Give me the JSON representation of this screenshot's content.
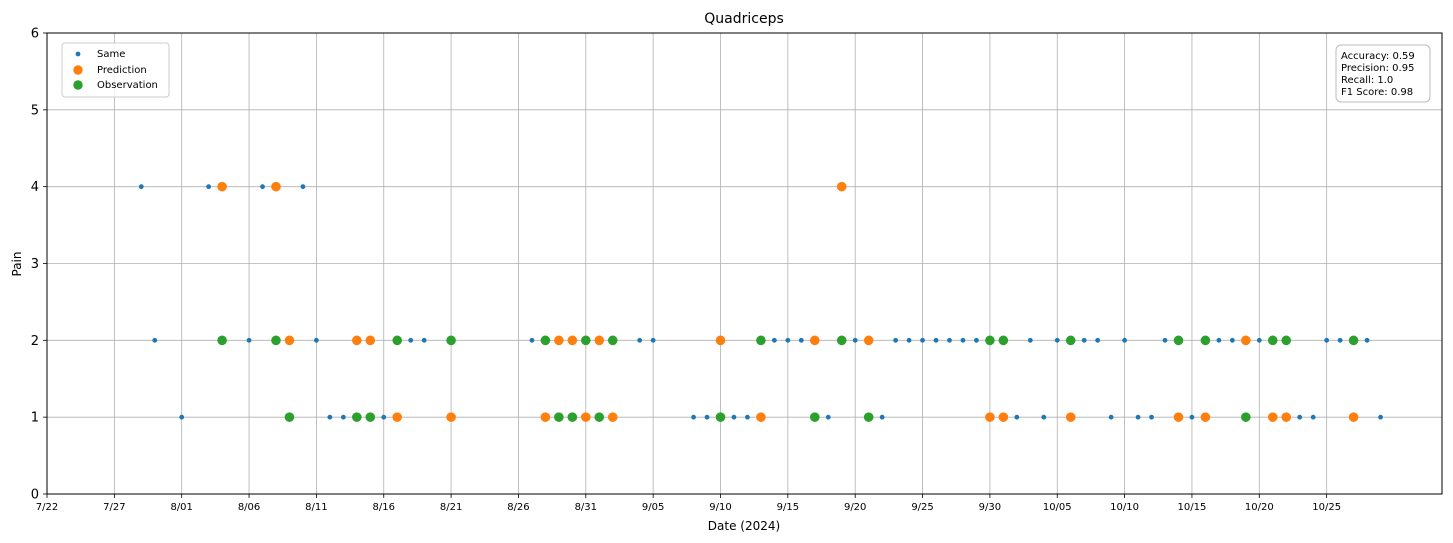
{
  "chart_data": {
    "type": "scatter",
    "title": "Quadriceps",
    "xlabel": "Date (2024)",
    "ylabel": "Pain",
    "ylim": [
      0,
      6
    ],
    "xlim": [
      "2024-07-22",
      "2024-11-01"
    ],
    "y_ticks": [
      "0",
      "1",
      "2",
      "3",
      "4",
      "5",
      "6"
    ],
    "x_ticks": [
      {
        "date": "2024-07-22",
        "label": "7/22"
      },
      {
        "date": "2024-07-27",
        "label": "7/27"
      },
      {
        "date": "2024-08-01",
        "label": "8/01"
      },
      {
        "date": "2024-08-06",
        "label": "8/06"
      },
      {
        "date": "2024-08-11",
        "label": "8/11"
      },
      {
        "date": "2024-08-16",
        "label": "8/16"
      },
      {
        "date": "2024-08-21",
        "label": "8/21"
      },
      {
        "date": "2024-08-26",
        "label": "8/26"
      },
      {
        "date": "2024-08-31",
        "label": "8/31"
      },
      {
        "date": "2024-09-05",
        "label": "9/05"
      },
      {
        "date": "2024-09-10",
        "label": "9/10"
      },
      {
        "date": "2024-09-15",
        "label": "9/15"
      },
      {
        "date": "2024-09-20",
        "label": "9/20"
      },
      {
        "date": "2024-09-25",
        "label": "9/25"
      },
      {
        "date": "2024-09-30",
        "label": "9/30"
      },
      {
        "date": "2024-10-05",
        "label": "10/05"
      },
      {
        "date": "2024-10-10",
        "label": "10/10"
      },
      {
        "date": "2024-10-15",
        "label": "10/15"
      },
      {
        "date": "2024-10-20",
        "label": "10/20"
      },
      {
        "date": "2024-10-25",
        "label": "10/25"
      }
    ],
    "grid": true,
    "legend_position": "top-left",
    "series": [
      {
        "name": "Same",
        "color": "#1f77b4",
        "marker": "small",
        "points": [
          [
            "2024-07-29",
            4
          ],
          [
            "2024-07-30",
            2
          ],
          [
            "2024-08-01",
            1
          ],
          [
            "2024-08-03",
            4
          ],
          [
            "2024-08-06",
            2
          ],
          [
            "2024-08-07",
            4
          ],
          [
            "2024-08-10",
            4
          ],
          [
            "2024-08-11",
            2
          ],
          [
            "2024-08-12",
            1
          ],
          [
            "2024-08-13",
            1
          ],
          [
            "2024-08-16",
            1
          ],
          [
            "2024-08-18",
            2
          ],
          [
            "2024-08-19",
            2
          ],
          [
            "2024-08-27",
            2
          ],
          [
            "2024-09-01",
            2
          ],
          [
            "2024-09-02",
            2
          ],
          [
            "2024-09-04",
            2
          ],
          [
            "2024-09-05",
            2
          ],
          [
            "2024-09-08",
            1
          ],
          [
            "2024-09-09",
            1
          ],
          [
            "2024-09-11",
            1
          ],
          [
            "2024-09-12",
            1
          ],
          [
            "2024-09-14",
            2
          ],
          [
            "2024-09-15",
            2
          ],
          [
            "2024-09-16",
            2
          ],
          [
            "2024-09-18",
            1
          ],
          [
            "2024-09-20",
            2
          ],
          [
            "2024-09-22",
            1
          ],
          [
            "2024-09-23",
            2
          ],
          [
            "2024-09-24",
            2
          ],
          [
            "2024-09-25",
            2
          ],
          [
            "2024-09-26",
            2
          ],
          [
            "2024-09-27",
            2
          ],
          [
            "2024-09-28",
            2
          ],
          [
            "2024-09-29",
            2
          ],
          [
            "2024-10-02",
            1
          ],
          [
            "2024-10-03",
            2
          ],
          [
            "2024-10-04",
            1
          ],
          [
            "2024-10-05",
            2
          ],
          [
            "2024-10-07",
            2
          ],
          [
            "2024-10-08",
            2
          ],
          [
            "2024-10-09",
            1
          ],
          [
            "2024-10-10",
            2
          ],
          [
            "2024-10-11",
            1
          ],
          [
            "2024-10-12",
            1
          ],
          [
            "2024-10-13",
            2
          ],
          [
            "2024-10-15",
            1
          ],
          [
            "2024-10-17",
            2
          ],
          [
            "2024-10-18",
            2
          ],
          [
            "2024-10-20",
            2
          ],
          [
            "2024-10-23",
            1
          ],
          [
            "2024-10-24",
            1
          ],
          [
            "2024-10-25",
            2
          ],
          [
            "2024-10-26",
            2
          ],
          [
            "2024-10-28",
            2
          ],
          [
            "2024-10-29",
            1
          ]
        ]
      },
      {
        "name": "Prediction",
        "color": "#ff7f0e",
        "marker": "large",
        "points": [
          [
            "2024-08-04",
            4
          ],
          [
            "2024-08-08",
            4
          ],
          [
            "2024-08-09",
            2
          ],
          [
            "2024-08-14",
            2
          ],
          [
            "2024-08-15",
            2
          ],
          [
            "2024-08-17",
            1
          ],
          [
            "2024-08-21",
            1
          ],
          [
            "2024-08-28",
            1
          ],
          [
            "2024-08-29",
            2
          ],
          [
            "2024-08-30",
            2
          ],
          [
            "2024-08-31",
            1
          ],
          [
            "2024-09-01",
            2
          ],
          [
            "2024-09-02",
            1
          ],
          [
            "2024-09-10",
            2
          ],
          [
            "2024-09-13",
            1
          ],
          [
            "2024-09-17",
            2
          ],
          [
            "2024-09-19",
            4
          ],
          [
            "2024-09-21",
            2
          ],
          [
            "2024-09-30",
            1
          ],
          [
            "2024-10-01",
            1
          ],
          [
            "2024-10-06",
            1
          ],
          [
            "2024-10-14",
            1
          ],
          [
            "2024-10-16",
            1
          ],
          [
            "2024-10-19",
            2
          ],
          [
            "2024-10-21",
            1
          ],
          [
            "2024-10-22",
            1
          ],
          [
            "2024-10-27",
            1
          ]
        ]
      },
      {
        "name": "Observation",
        "color": "#2ca02c",
        "marker": "large",
        "points": [
          [
            "2024-08-04",
            2
          ],
          [
            "2024-08-08",
            2
          ],
          [
            "2024-08-09",
            1
          ],
          [
            "2024-08-14",
            1
          ],
          [
            "2024-08-15",
            1
          ],
          [
            "2024-08-17",
            2
          ],
          [
            "2024-08-21",
            2
          ],
          [
            "2024-08-28",
            2
          ],
          [
            "2024-08-29",
            1
          ],
          [
            "2024-08-30",
            1
          ],
          [
            "2024-08-31",
            2
          ],
          [
            "2024-09-01",
            1
          ],
          [
            "2024-09-02",
            2
          ],
          [
            "2024-09-10",
            1
          ],
          [
            "2024-09-13",
            2
          ],
          [
            "2024-09-17",
            1
          ],
          [
            "2024-09-19",
            2
          ],
          [
            "2024-09-21",
            1
          ],
          [
            "2024-09-30",
            2
          ],
          [
            "2024-10-01",
            2
          ],
          [
            "2024-10-06",
            2
          ],
          [
            "2024-10-14",
            2
          ],
          [
            "2024-10-16",
            2
          ],
          [
            "2024-10-19",
            1
          ],
          [
            "2024-10-21",
            2
          ],
          [
            "2024-10-22",
            2
          ],
          [
            "2024-10-27",
            2
          ]
        ]
      }
    ],
    "metrics": [
      "Accuracy: 0.59",
      "Precision: 0.95",
      "Recall: 1.0",
      "F1 Score: 0.98"
    ]
  }
}
